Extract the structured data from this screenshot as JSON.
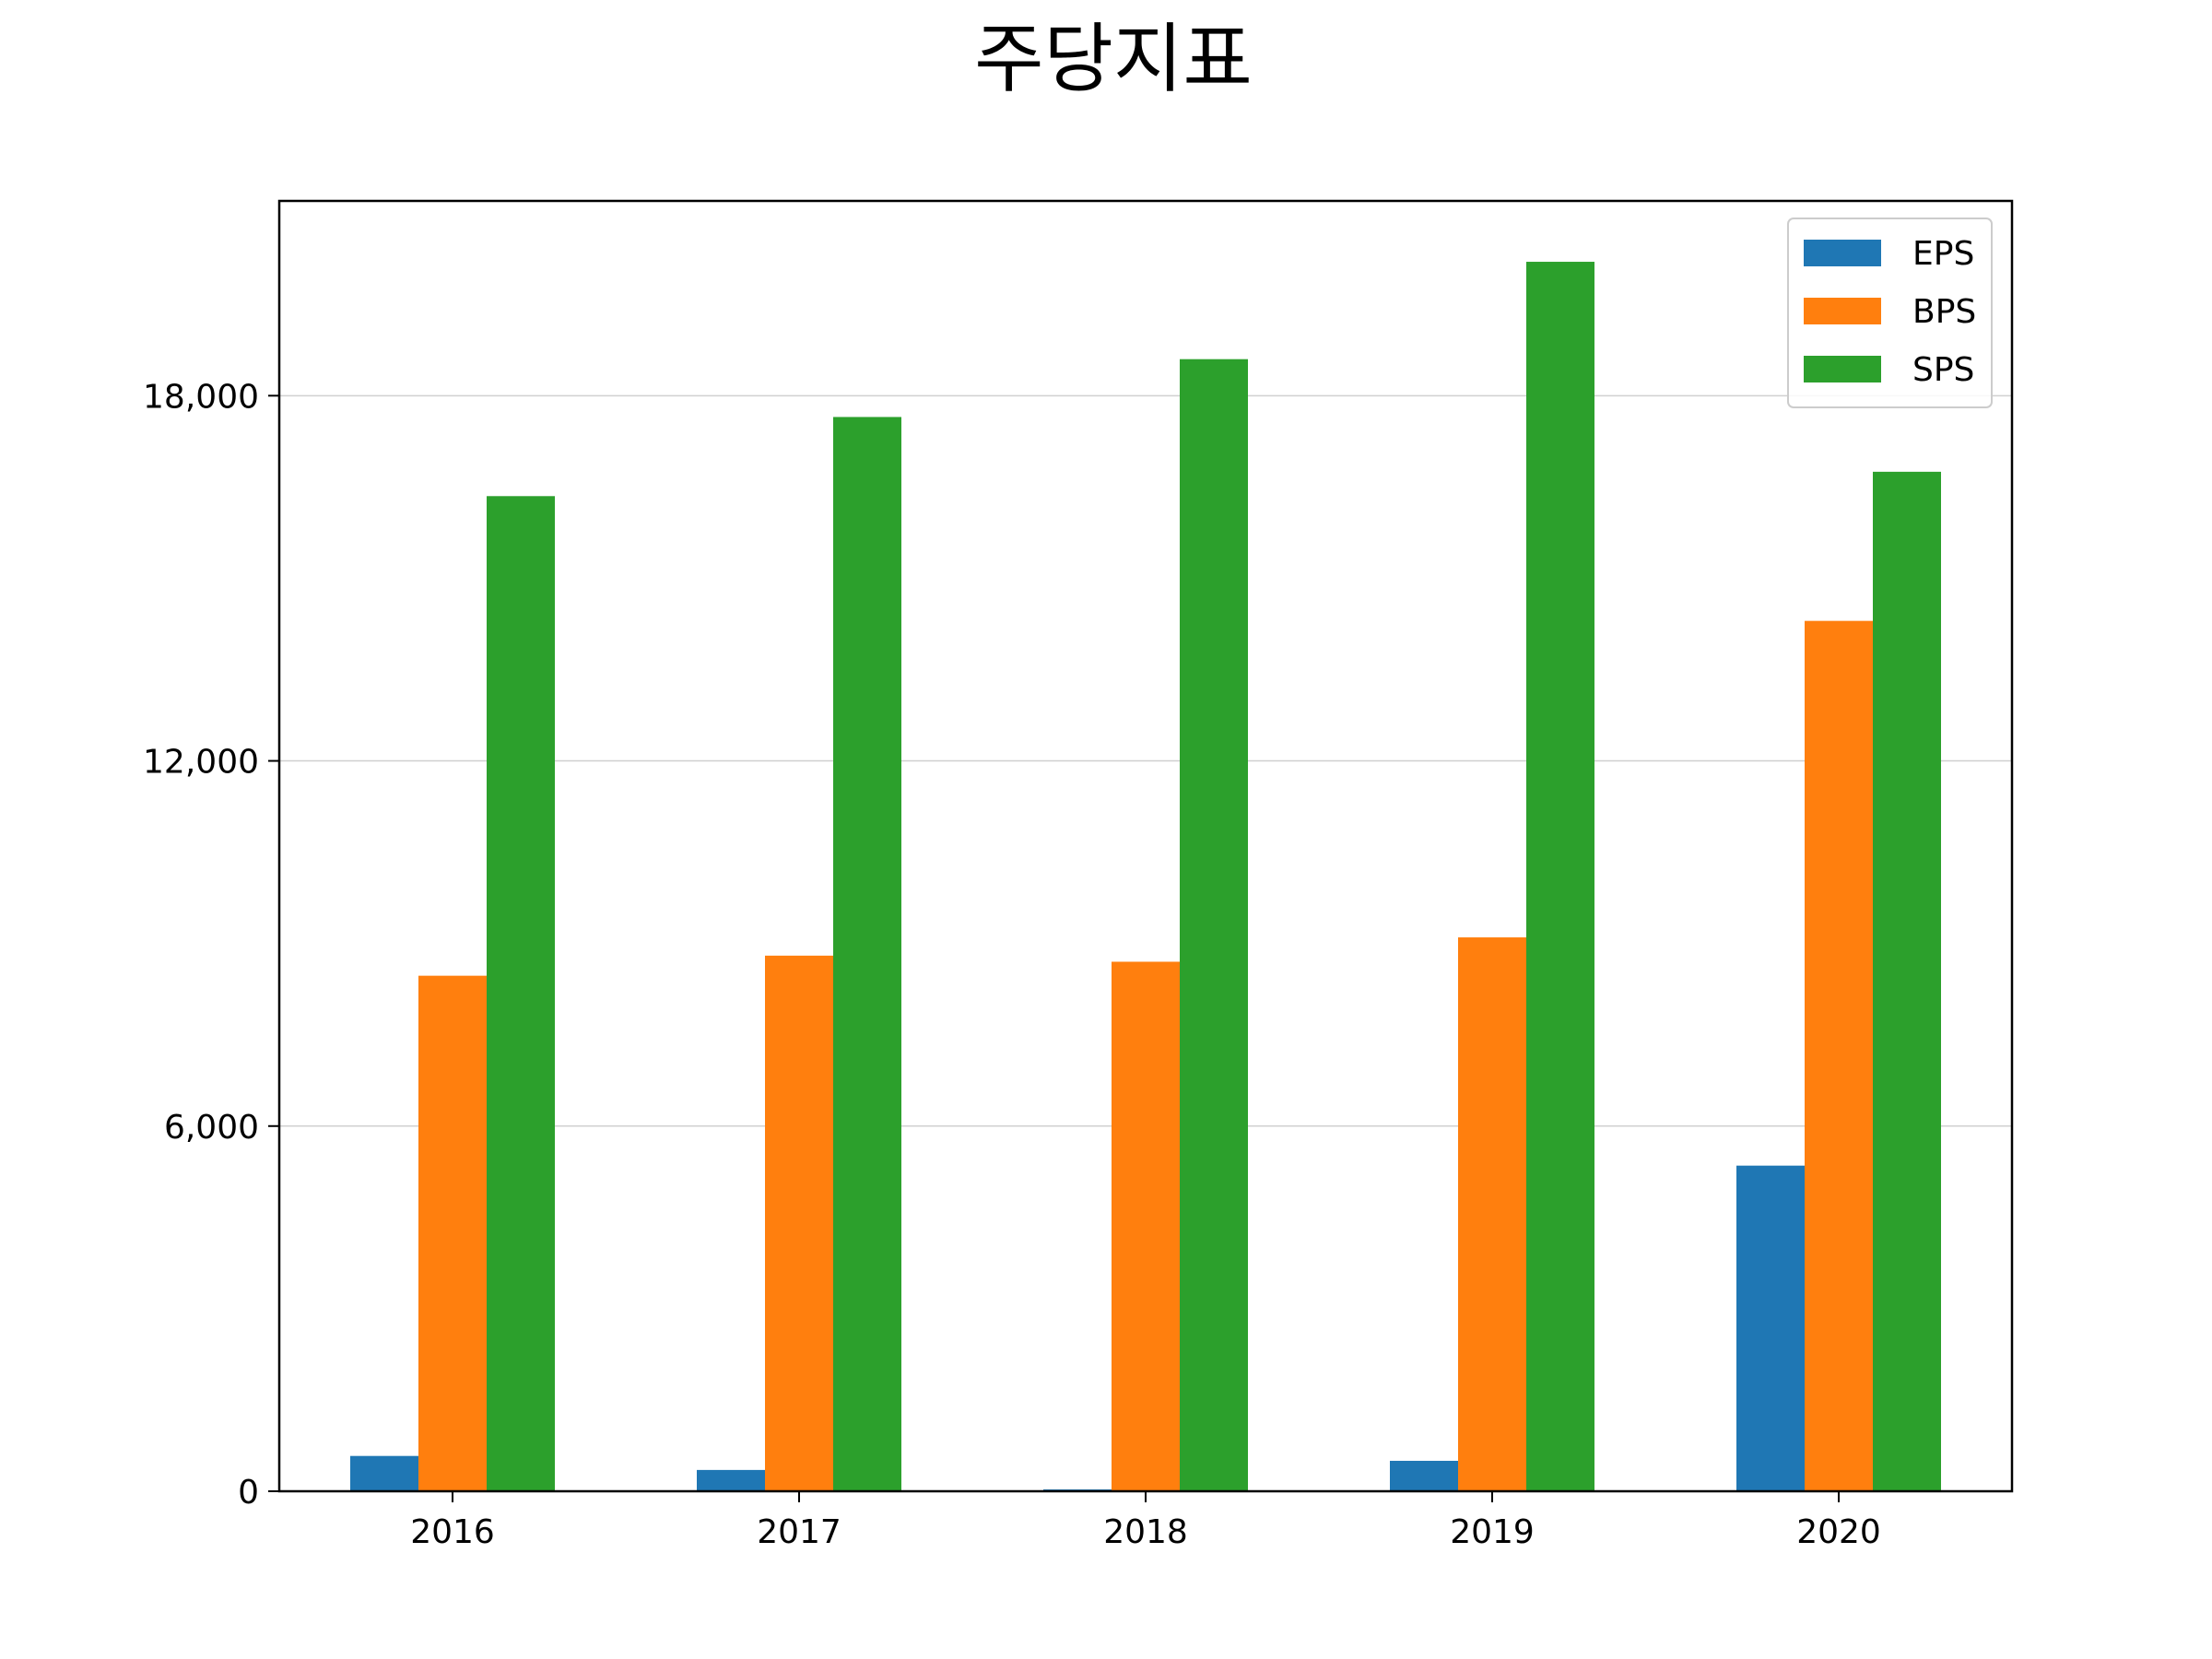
{
  "chart_data": {
    "type": "bar",
    "title": "주당지표",
    "xlabel": "",
    "ylabel": "",
    "categories": [
      "2016",
      "2017",
      "2018",
      "2019",
      "2020"
    ],
    "series": [
      {
        "name": "EPS",
        "color": "#1f77b4",
        "values": [
          580,
          350,
          30,
          500,
          5350
        ]
      },
      {
        "name": "BPS",
        "color": "#ff7f0e",
        "values": [
          8470,
          8800,
          8700,
          9100,
          14300
        ]
      },
      {
        "name": "SPS",
        "color": "#2ca02c",
        "values": [
          16350,
          17650,
          18600,
          20200,
          16750
        ]
      }
    ],
    "ylim": [
      0,
      21200
    ],
    "yticks": [
      0,
      6000,
      12000,
      18000
    ],
    "ytick_labels": [
      "0",
      "6,000",
      "12,000",
      "18,000"
    ],
    "grid": "horizontal",
    "legend_position": "top-right"
  }
}
